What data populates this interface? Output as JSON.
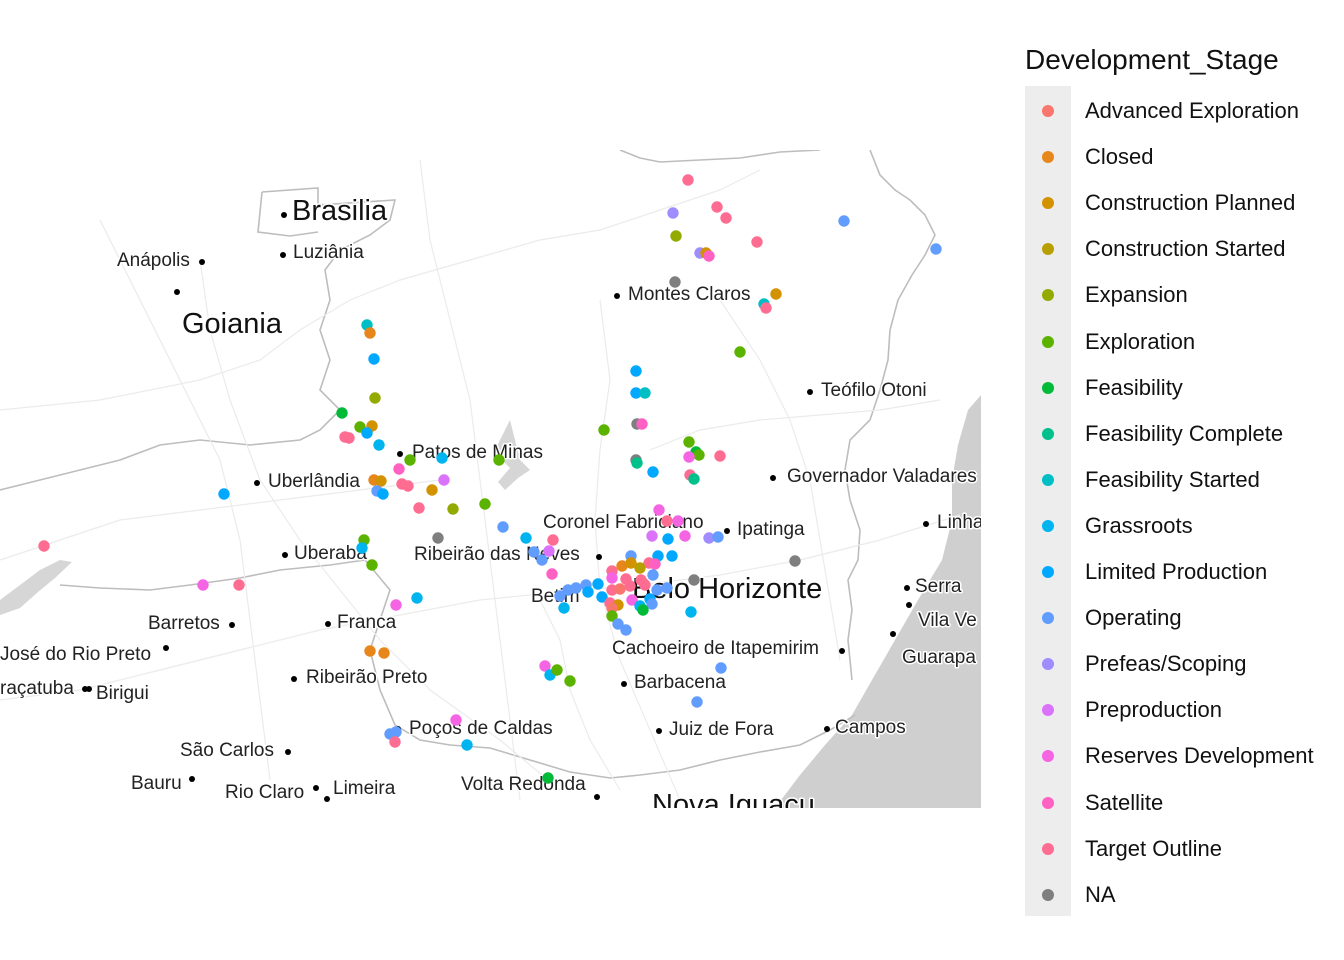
{
  "legend": {
    "title": "Development_Stage",
    "items": [
      {
        "label": "Advanced Exploration",
        "color": "#F8766D"
      },
      {
        "label": "Closed",
        "color": "#E7861B"
      },
      {
        "label": "Construction Planned",
        "color": "#D39200"
      },
      {
        "label": "Construction Started",
        "color": "#B79F00"
      },
      {
        "label": "Expansion",
        "color": "#93AA00"
      },
      {
        "label": "Exploration",
        "color": "#5BB300"
      },
      {
        "label": "Feasibility",
        "color": "#00BA38"
      },
      {
        "label": "Feasibility Complete",
        "color": "#00C08B"
      },
      {
        "label": "Feasibility Started",
        "color": "#00BFC4"
      },
      {
        "label": "Grassroots",
        "color": "#00B4F0"
      },
      {
        "label": "Limited Production",
        "color": "#00A9FF"
      },
      {
        "label": "Operating",
        "color": "#619CFF"
      },
      {
        "label": "Prefeas/Scoping",
        "color": "#9F8CFF"
      },
      {
        "label": "Preproduction",
        "color": "#DB72FB"
      },
      {
        "label": "Reserves Development",
        "color": "#F564E3"
      },
      {
        "label": "Satellite",
        "color": "#FF61C3"
      },
      {
        "label": "Target Outline",
        "color": "#FF6C91"
      },
      {
        "label": "NA",
        "color": "#7F7F7F"
      }
    ]
  },
  "map": {
    "cities": [
      {
        "name": "Brasilia",
        "size": "big"
      },
      {
        "name": "Luziânia",
        "size": "med"
      },
      {
        "name": "Anápolis",
        "size": "med"
      },
      {
        "name": "Goiania",
        "size": "big"
      },
      {
        "name": "Montes Claros",
        "size": "med"
      },
      {
        "name": "Teófilo Otoni",
        "size": "med"
      },
      {
        "name": "Patos de Minas",
        "size": "med"
      },
      {
        "name": "Uberlândia",
        "size": "med"
      },
      {
        "name": "Governador Valadares",
        "size": "med"
      },
      {
        "name": "Linha",
        "size": "med"
      },
      {
        "name": "Coronel Fabriciano",
        "size": "med"
      },
      {
        "name": "Ipatinga",
        "size": "med"
      },
      {
        "name": "Uberaba",
        "size": "med"
      },
      {
        "name": "Ribeirão das Neves",
        "size": "med"
      },
      {
        "name": "Belo Horizonte",
        "size": "big"
      },
      {
        "name": "Serra",
        "size": "med"
      },
      {
        "name": "Vila Ve",
        "size": "med"
      },
      {
        "name": "Barretos",
        "size": "med"
      },
      {
        "name": "Franca",
        "size": "med"
      },
      {
        "name": "Betim",
        "size": "med"
      },
      {
        "name": "Cachoeiro de Itapemirim",
        "size": "med"
      },
      {
        "name": "Guarapa",
        "size": "med"
      },
      {
        "name": "José do Rio Preto",
        "size": "med"
      },
      {
        "name": "Ribeirão Preto",
        "size": "med"
      },
      {
        "name": "Barbacena",
        "size": "med"
      },
      {
        "name": "raçatuba",
        "size": "med"
      },
      {
        "name": "Birigui",
        "size": "med"
      },
      {
        "name": "Poços de Caldas",
        "size": "med"
      },
      {
        "name": "Juiz de Fora",
        "size": "med"
      },
      {
        "name": "Campos",
        "size": "med"
      },
      {
        "name": "São Carlos",
        "size": "med"
      },
      {
        "name": "Bauru",
        "size": "med"
      },
      {
        "name": "Rio Claro",
        "size": "med"
      },
      {
        "name": "Limeira",
        "size": "med"
      },
      {
        "name": "Volta Redonda",
        "size": "med"
      },
      {
        "name": "Nova Iguacu",
        "size": "big"
      }
    ]
  }
}
